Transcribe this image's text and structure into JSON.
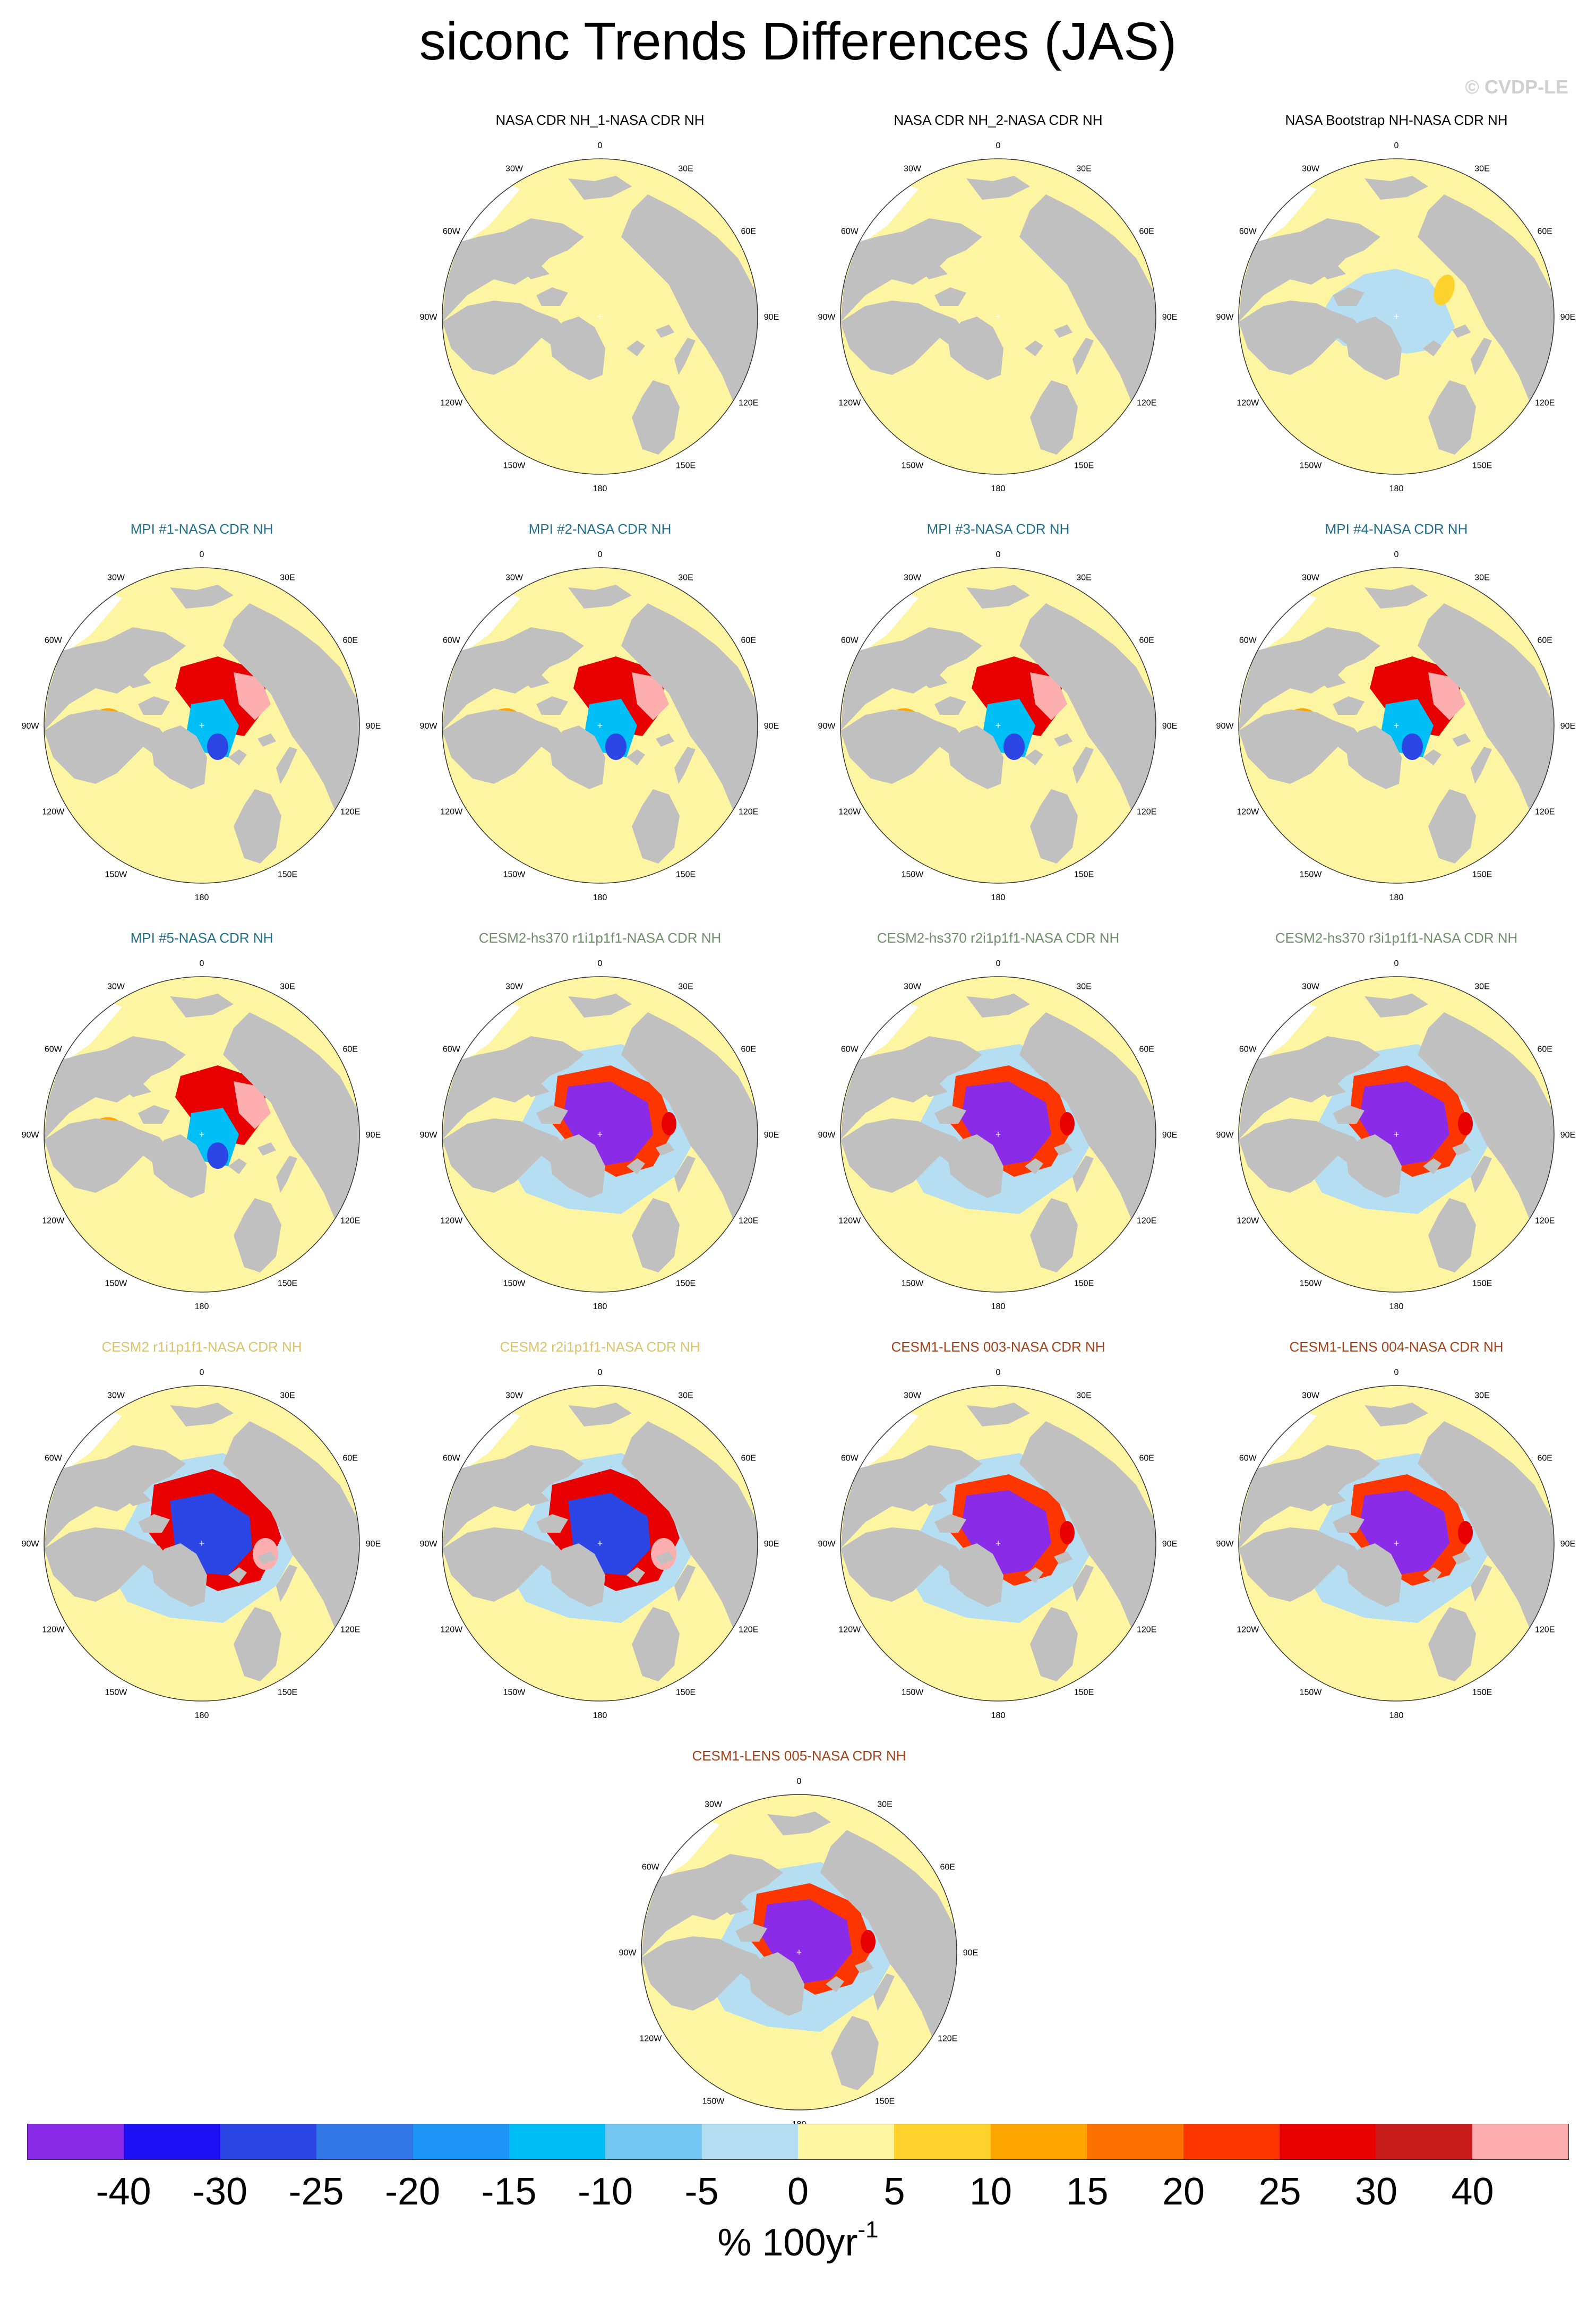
{
  "title": "siconc Trends Differences (JAS)",
  "watermark": "© CVDP-LE",
  "map_labels": {
    "lon_180": "180",
    "lon_150W": "150W",
    "lon_150E": "150E",
    "lon_120W": "120W",
    "lon_120E": "120E",
    "lon_90W": "90W",
    "lon_90E": "90E",
    "lon_60W": "60W",
    "lon_60E": "60E",
    "lon_30W": "30W",
    "lon_30E": "30E",
    "lon_0": "0"
  },
  "colors": {
    "land": "#c0c0c0",
    "ocean_background": "#fdf5a2",
    "title_observations": "#000000",
    "title_mpi": "#1f6e8c",
    "title_cesm2_hs370": "#6f8f6a",
    "title_cesm2": "#d8c46a",
    "title_cesm1_lens": "#a0421a"
  },
  "panels": [
    {
      "title": "NASA CDR NH_1-NASA CDR NH",
      "group": "observations",
      "pattern": "zero"
    },
    {
      "title": "NASA CDR NH_2-NASA CDR NH",
      "group": "observations",
      "pattern": "zero"
    },
    {
      "title": "NASA Bootstrap NH-NASA CDR NH",
      "group": "observations",
      "pattern": "bootstrap"
    },
    {
      "title": "MPI #1-NASA CDR NH",
      "group": "mpi",
      "pattern": "mpi"
    },
    {
      "title": "MPI #2-NASA CDR NH",
      "group": "mpi",
      "pattern": "mpi"
    },
    {
      "title": "MPI #3-NASA CDR NH",
      "group": "mpi",
      "pattern": "mpi"
    },
    {
      "title": "MPI #4-NASA CDR NH",
      "group": "mpi",
      "pattern": "mpi"
    },
    {
      "title": "MPI #5-NASA CDR NH",
      "group": "mpi",
      "pattern": "mpi"
    },
    {
      "title": "CESM2-hs370 r1i1p1f1-NASA CDR NH",
      "group": "cesm2_hs370",
      "pattern": "strong_negative"
    },
    {
      "title": "CESM2-hs370 r2i1p1f1-NASA CDR NH",
      "group": "cesm2_hs370",
      "pattern": "strong_negative"
    },
    {
      "title": "CESM2-hs370 r3i1p1f1-NASA CDR NH",
      "group": "cesm2_hs370",
      "pattern": "strong_negative"
    },
    {
      "title": "CESM2 r1i1p1f1-NASA CDR NH",
      "group": "cesm2",
      "pattern": "negative"
    },
    {
      "title": "CESM2 r2i1p1f1-NASA CDR NH",
      "group": "cesm2",
      "pattern": "negative"
    },
    {
      "title": "CESM1-LENS 003-NASA CDR NH",
      "group": "cesm1_lens",
      "pattern": "strong_negative"
    },
    {
      "title": "CESM1-LENS 004-NASA CDR NH",
      "group": "cesm1_lens",
      "pattern": "strong_negative"
    },
    {
      "title": "CESM1-LENS 005-NASA CDR NH",
      "group": "cesm1_lens",
      "pattern": "strong_negative"
    }
  ],
  "colorbar": {
    "colors": [
      "#8a2be8",
      "#1e10f5",
      "#2c46e6",
      "#3376e8",
      "#1e96f8",
      "#00bff7",
      "#72c8f2",
      "#b5def2",
      "#fdf5a2",
      "#fdd22c",
      "#fda500",
      "#fd7100",
      "#fd3600",
      "#e80000",
      "#c81d1d",
      "#fdaeae"
    ],
    "tick_labels": [
      "-40",
      "-30",
      "-25",
      "-20",
      "-15",
      "-10",
      "-5",
      "0",
      "5",
      "10",
      "15",
      "20",
      "25",
      "30",
      "40"
    ],
    "units": "% 100yr",
    "units_superscript": "-1"
  }
}
